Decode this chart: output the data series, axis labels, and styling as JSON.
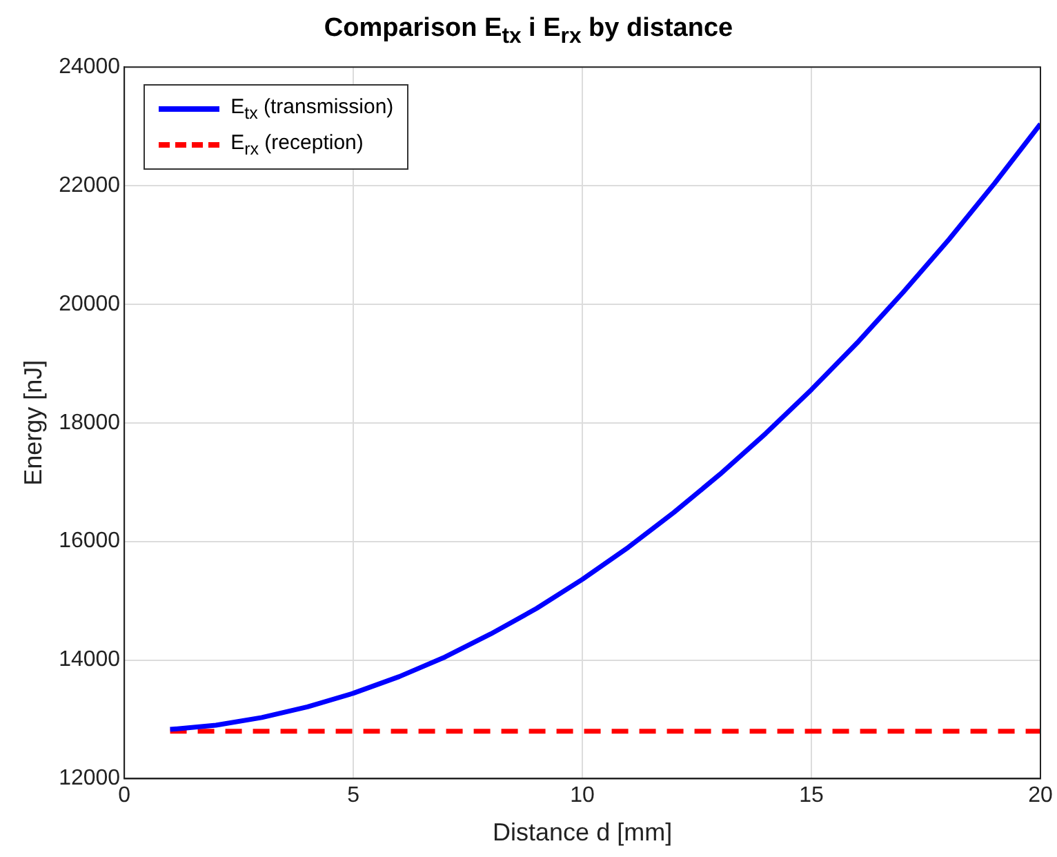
{
  "chart_data": {
    "type": "line",
    "title": "Comparison E$_{tx}$ i E$_{rx}$ by distance",
    "xlabel": "Distance d [mm]",
    "ylabel": "Energy [nJ]",
    "x": [
      1,
      2,
      3,
      4,
      5,
      6,
      7,
      8,
      9,
      10,
      11,
      12,
      13,
      14,
      15,
      16,
      17,
      18,
      19,
      20
    ],
    "series": [
      {
        "name": "E$_{tx}$ (transmission)",
        "color": "#0000ff",
        "line_style": "solid",
        "values": [
          12830,
          12900,
          13030,
          13210,
          13440,
          13720,
          14050,
          14440,
          14870,
          15360,
          15900,
          16490,
          17130,
          17820,
          18560,
          19350,
          20200,
          21090,
          22040,
          23040
        ]
      },
      {
        "name": "E$_{rx}$ (reception)",
        "color": "#ff0000",
        "line_style": "dashed",
        "values": [
          12800,
          12800,
          12800,
          12800,
          12800,
          12800,
          12800,
          12800,
          12800,
          12800,
          12800,
          12800,
          12800,
          12800,
          12800,
          12800,
          12800,
          12800,
          12800,
          12800
        ]
      }
    ],
    "xlim": [
      0,
      20
    ],
    "xticks": [
      0,
      5,
      10,
      15,
      20
    ],
    "ylim": [
      12000,
      24000
    ],
    "yticks": [
      12000,
      14000,
      16000,
      18000,
      20000,
      22000,
      24000
    ],
    "grid": true,
    "legend": "top left",
    "marker": "none"
  }
}
